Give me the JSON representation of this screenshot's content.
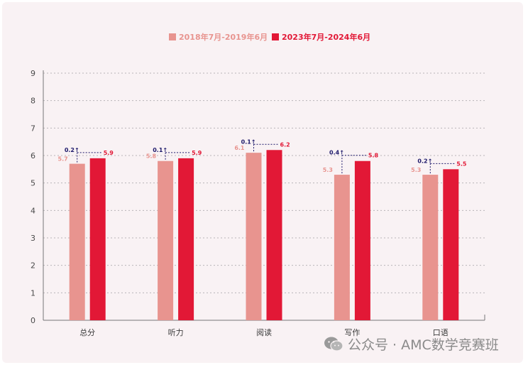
{
  "chart_data": {
    "type": "bar",
    "categories": [
      "总分",
      "听力",
      "阅读",
      "写作",
      "口语"
    ],
    "series": [
      {
        "name": "2018年7月-2019年6月",
        "values": [
          5.7,
          5.8,
          6.1,
          5.3,
          5.3
        ],
        "color": "#e8948f"
      },
      {
        "name": "2023年7月-2024年6月",
        "values": [
          5.9,
          5.9,
          6.2,
          5.8,
          5.5
        ],
        "color": "#e21836"
      }
    ],
    "value_labels": [
      [
        "5.7",
        "5.8",
        "6.1",
        "5.3",
        "5.3"
      ],
      [
        "5.9",
        "5.9",
        "6.2",
        "5.8",
        "5.5"
      ]
    ],
    "diff_labels": [
      "0.2↑",
      "0.1↑",
      "0.1↑",
      "0.4↑",
      "0.2↑"
    ],
    "diff_color": "#1e1a6b",
    "yticks": [
      "0",
      "1",
      "2",
      "3",
      "4",
      "5",
      "6",
      "7",
      "8",
      "9"
    ],
    "ylim": [
      0,
      9
    ],
    "grid": true,
    "legend_position": "top-center",
    "title": "",
    "xlabel": "",
    "ylabel": ""
  },
  "watermark": {
    "icon": "wechat-icon",
    "text": "公众号 · AMC数学竞赛班"
  }
}
